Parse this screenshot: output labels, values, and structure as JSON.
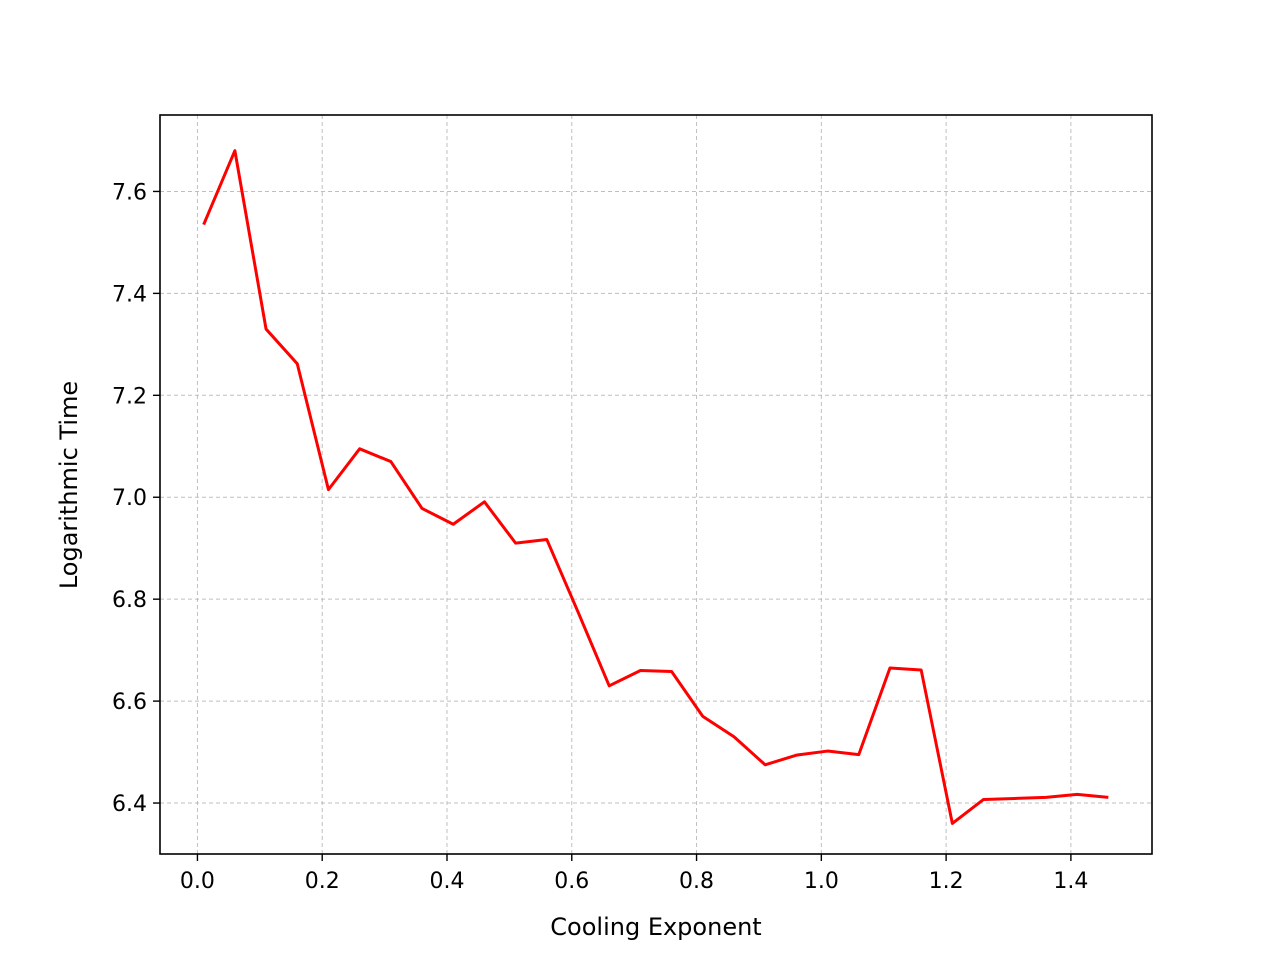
{
  "chart_data": {
    "type": "line",
    "xlabel": "Cooling Exponent",
    "ylabel": "Logarithmic Time",
    "xlim": [
      -0.06,
      1.53
    ],
    "ylim": [
      6.3,
      7.75
    ],
    "xticks": [
      0.0,
      0.2,
      0.4,
      0.6,
      0.8,
      1.0,
      1.2,
      1.4
    ],
    "xtick_labels": [
      "0.0",
      "0.2",
      "0.4",
      "0.6",
      "0.8",
      "1.0",
      "1.2",
      "1.4"
    ],
    "yticks": [
      6.4,
      6.6,
      6.8,
      7.0,
      7.2,
      7.4,
      7.6
    ],
    "ytick_labels": [
      "6.4",
      "6.6",
      "6.8",
      "7.0",
      "7.2",
      "7.4",
      "7.6"
    ],
    "grid": true,
    "series": [
      {
        "color": "#ff0000",
        "x": [
          0.01,
          0.06,
          0.11,
          0.16,
          0.21,
          0.26,
          0.31,
          0.36,
          0.41,
          0.46,
          0.51,
          0.56,
          0.61,
          0.66,
          0.71,
          0.76,
          0.81,
          0.86,
          0.91,
          0.96,
          1.01,
          1.06,
          1.11,
          1.16,
          1.21,
          1.26,
          1.31,
          1.36,
          1.41,
          1.46
        ],
        "y": [
          7.535,
          7.68,
          7.33,
          7.262,
          7.015,
          7.095,
          7.07,
          6.978,
          6.947,
          6.991,
          6.91,
          6.917,
          6.775,
          6.63,
          6.66,
          6.658,
          6.57,
          6.53,
          6.475,
          6.494,
          6.502,
          6.495,
          6.665,
          6.661,
          6.36,
          6.407,
          6.409,
          6.411,
          6.417,
          6.411
        ]
      }
    ]
  }
}
